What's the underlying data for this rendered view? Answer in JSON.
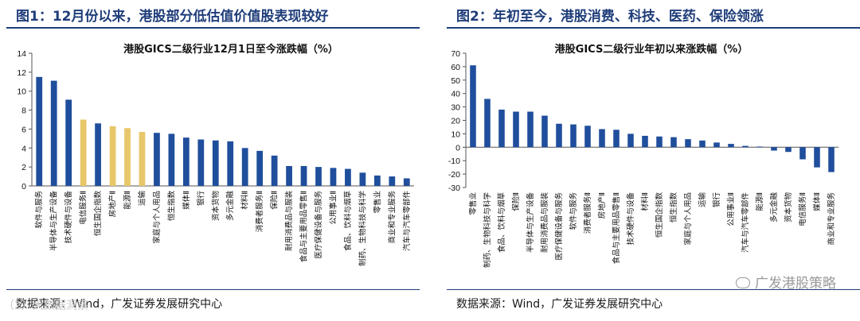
{
  "left": {
    "fig_title": "图1：12月份以来，港股部分低估值价值股表现较好",
    "source": "数据来源：Wind，广发证券发展研究中心",
    "watermark_overlay": "（2）大数据洞察",
    "chart_data": {
      "type": "bar",
      "title": "港股GICS二级行业12月1日至今涨跌幅（%）",
      "ylim": [
        0,
        14
      ],
      "yticks": [
        0,
        2,
        4,
        6,
        8,
        10,
        12,
        14
      ],
      "grid": false,
      "categories": [
        "软件与服务",
        "半导体与生产设备",
        "技术硬件与设备",
        "电信服务Ⅱ",
        "恒生国企指数",
        "房地产Ⅱ",
        "能源Ⅱ",
        "运输",
        "家庭与个人用品",
        "恒生指数",
        "媒体Ⅱ",
        "银行",
        "资本货物",
        "多元金融",
        "材料Ⅱ",
        "消费者服务Ⅱ",
        "保险Ⅱ",
        "耐用消费品与服装",
        "食品与主要用品零售Ⅱ",
        "医疗保健设备与服务",
        "公用事业Ⅱ",
        "食品、饮料与烟草",
        "制药、生物科技与科学",
        "零售业",
        "商业和专业服务",
        "汽车与汽车零部件"
      ],
      "values": [
        11.5,
        11.1,
        9.1,
        7.0,
        6.6,
        6.3,
        6.1,
        5.7,
        5.6,
        5.5,
        5.1,
        4.9,
        4.8,
        4.7,
        4.0,
        3.7,
        3.2,
        2.1,
        2.1,
        2.0,
        1.9,
        1.8,
        1.4,
        1.1,
        1.0,
        0.8
      ],
      "colors": {
        "default": "#1f4e9c",
        "highlight": "#e8c76a"
      },
      "highlight_indices": [
        3,
        5,
        6,
        7
      ]
    }
  },
  "right": {
    "fig_title": "图2：年初至今，港股消费、科技、医药、保险领涨",
    "source": "数据来源：Wind，广发证券发展研究中心",
    "watermark": "广发港股策略",
    "chart_data": {
      "type": "bar",
      "title": "港股GICS二级行业年初以来涨跌幅（%）",
      "ylim": [
        -30,
        70
      ],
      "yticks": [
        -30,
        -20,
        -10,
        0,
        10,
        20,
        30,
        40,
        50,
        60,
        70
      ],
      "grid": false,
      "categories": [
        "零售业",
        "制药、生物科技与科学",
        "食品、饮料与烟草",
        "保险Ⅱ",
        "半导体与生产设备",
        "耐用消费品与服装",
        "医疗保健设备与服务",
        "软件与服务",
        "消费者服务Ⅱ",
        "房地产Ⅱ",
        "食品与主要用品零售Ⅱ",
        "技术硬件与设备",
        "材料Ⅱ",
        "恒生国企指数",
        "恒生指数",
        "家庭与个人用品",
        "运输",
        "银行",
        "公用事业Ⅱ",
        "汽车与汽车零部件",
        "能源Ⅱ",
        "多元金融",
        "资本货物",
        "电信服务Ⅱ",
        "媒体Ⅱ",
        "商业和专业服务"
      ],
      "values": [
        61,
        36,
        28,
        26.5,
        26.5,
        23.5,
        17.5,
        17,
        16,
        13.5,
        13,
        10,
        8.5,
        8,
        7.5,
        6,
        5,
        3.5,
        2.5,
        1,
        0.5,
        -2.5,
        -3.5,
        -9,
        -15,
        -18.5
      ],
      "colors": {
        "default": "#1f4e9c"
      }
    }
  }
}
